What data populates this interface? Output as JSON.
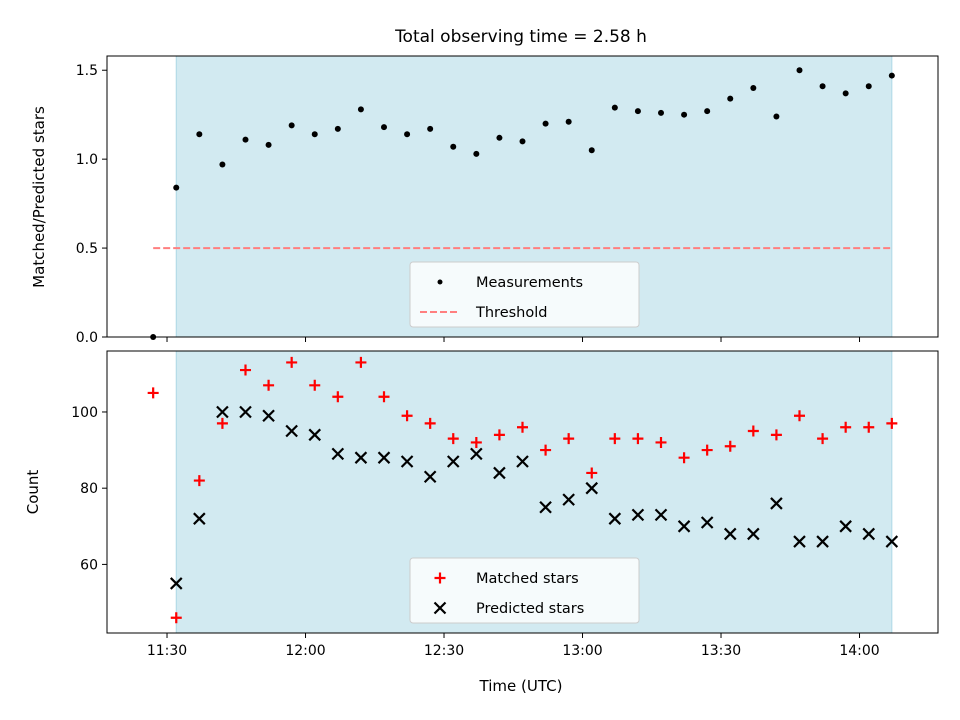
{
  "colors": {
    "background": "#ffffff",
    "shade": "#add8e6",
    "measurement": "#000000",
    "threshold": "#ff7f7f",
    "matched": "#ff0000",
    "predicted": "#000000"
  },
  "chart_data": [
    {
      "type": "scatter",
      "title": "Total observing time = 2.58 h",
      "xlabel": "",
      "ylabel": "Matched/Predicted stars",
      "xlim": [
        "11:17",
        "14:17"
      ],
      "ylim": [
        0,
        1.58
      ],
      "yticks": [
        0.0,
        0.5,
        1.0,
        1.5
      ],
      "ytick_labels": [
        "0.0",
        "0.5",
        "1.0",
        "1.5"
      ],
      "xticks": [
        "11:30",
        "12:00",
        "12:30",
        "13:00",
        "13:30",
        "14:00"
      ],
      "shaded_span": [
        "11:32",
        "14:07"
      ],
      "grid": false,
      "legend": {
        "placement": "lower center",
        "entries": [
          "Measurements",
          "Threshold"
        ]
      },
      "series": [
        {
          "name": "Measurements",
          "marker": "dot",
          "x": [
            "11:27",
            "11:32",
            "11:37",
            "11:42",
            "11:47",
            "11:52",
            "11:57",
            "12:02",
            "12:07",
            "12:12",
            "12:17",
            "12:22",
            "12:27",
            "12:32",
            "12:37",
            "12:42",
            "12:47",
            "12:52",
            "12:57",
            "13:02",
            "13:07",
            "13:12",
            "13:17",
            "13:22",
            "13:27",
            "13:32",
            "13:37",
            "13:42",
            "13:47",
            "13:52",
            "13:57",
            "14:02",
            "14:07"
          ],
          "y": [
            0.0,
            0.84,
            1.14,
            0.97,
            1.11,
            1.08,
            1.19,
            1.14,
            1.17,
            1.28,
            1.18,
            1.14,
            1.17,
            1.07,
            1.03,
            1.12,
            1.1,
            1.2,
            1.21,
            1.05,
            1.29,
            1.27,
            1.26,
            1.25,
            1.27,
            1.34,
            1.4,
            1.24,
            1.5,
            1.41,
            1.37,
            1.41,
            1.47
          ]
        },
        {
          "name": "Threshold",
          "style": "dashed-line",
          "x": [
            "11:27",
            "14:07"
          ],
          "y": [
            0.5,
            0.5
          ]
        }
      ]
    },
    {
      "type": "scatter",
      "title": "",
      "xlabel": "Time (UTC)",
      "ylabel": "Count",
      "xlim": [
        "11:17",
        "14:17"
      ],
      "ylim": [
        42,
        116
      ],
      "yticks": [
        60,
        80,
        100
      ],
      "ytick_labels": [
        "60",
        "80",
        "100"
      ],
      "xticks": [
        "11:30",
        "12:00",
        "12:30",
        "13:00",
        "13:30",
        "14:00"
      ],
      "xtick_labels": [
        "11:30",
        "12:00",
        "12:30",
        "13:00",
        "13:30",
        "14:00"
      ],
      "shaded_span": [
        "11:32",
        "14:07"
      ],
      "grid": false,
      "legend": {
        "placement": "lower center",
        "entries": [
          "Matched stars",
          "Predicted stars"
        ]
      },
      "series": [
        {
          "name": "Matched stars",
          "marker": "plus",
          "x": [
            "11:27",
            "11:32",
            "11:37",
            "11:42",
            "11:47",
            "11:52",
            "11:57",
            "12:02",
            "12:07",
            "12:12",
            "12:17",
            "12:22",
            "12:27",
            "12:32",
            "12:37",
            "12:42",
            "12:47",
            "12:52",
            "12:57",
            "13:02",
            "13:07",
            "13:12",
            "13:17",
            "13:22",
            "13:27",
            "13:32",
            "13:37",
            "13:42",
            "13:47",
            "13:52",
            "13:57",
            "14:02",
            "14:07"
          ],
          "y": [
            105,
            46,
            82,
            97,
            111,
            107,
            113,
            107,
            104,
            113,
            104,
            99,
            97,
            93,
            92,
            94,
            96,
            90,
            93,
            84,
            93,
            93,
            92,
            88,
            90,
            91,
            95,
            94,
            99,
            93,
            96,
            96,
            97
          ]
        },
        {
          "name": "Predicted stars",
          "marker": "x",
          "x": [
            "11:32",
            "11:37",
            "11:42",
            "11:47",
            "11:52",
            "11:57",
            "12:02",
            "12:07",
            "12:12",
            "12:17",
            "12:22",
            "12:27",
            "12:32",
            "12:37",
            "12:42",
            "12:47",
            "12:52",
            "12:57",
            "13:02",
            "13:07",
            "13:12",
            "13:17",
            "13:22",
            "13:27",
            "13:32",
            "13:37",
            "13:42",
            "13:47",
            "13:52",
            "13:57",
            "14:02",
            "14:07"
          ],
          "y": [
            55,
            72,
            100,
            100,
            99,
            95,
            94,
            89,
            88,
            88,
            87,
            83,
            87,
            89,
            84,
            87,
            75,
            77,
            80,
            72,
            73,
            73,
            70,
            71,
            68,
            68,
            76,
            66,
            66,
            70,
            68,
            66
          ]
        }
      ]
    }
  ]
}
